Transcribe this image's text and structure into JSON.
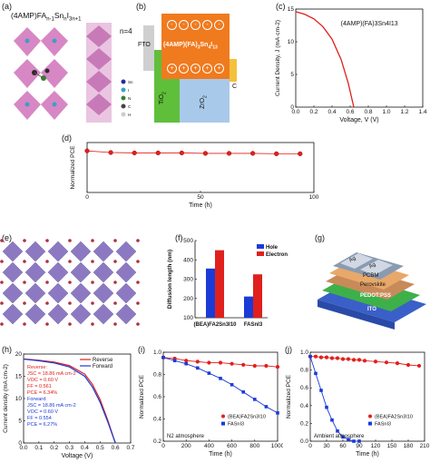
{
  "panels": {
    "a": {
      "label": "(a)",
      "formula": "(4AMP)FAn-1SnnI3n+1",
      "n_label": "n=4",
      "legend": [
        "Sn",
        "I",
        "N",
        "C",
        "H"
      ]
    },
    "b": {
      "label": "(b)",
      "fto": "FTO",
      "compound": "(4AMP)(FA)3Sn4I13",
      "tio2": "TiO2",
      "zro2": "ZrO2",
      "c": "C",
      "minus": [
        "-",
        "-",
        "-",
        "-",
        "-"
      ],
      "plus": [
        "+",
        "+",
        "+",
        "+",
        "+"
      ]
    },
    "c": {
      "label": "(c)",
      "series_label": "(4AMP)(FA)3Sn4I13",
      "xlabel": "Voltage, V (V)",
      "ylabel": "Current Density, J (mA·cm-2)"
    },
    "d": {
      "label": "(d)",
      "xlabel": "Time (h)",
      "ylabel": "Normalized PCE"
    },
    "e": {
      "label": "(e)"
    },
    "f": {
      "label": "(f)",
      "ylabel": "Diffusion length (nm)"
    },
    "g": {
      "label": "(g)",
      "layers": [
        "Ag",
        "Ag",
        "PCBM",
        "Perovskite",
        "PEDOT:PSS",
        "ITO"
      ]
    },
    "h": {
      "label": "(h)",
      "reverse_title": "Reverse:",
      "reverse_jsc": "JSC = 18.86 mA cm-2",
      "reverse_voc": "VOC = 0.60 V",
      "reverse_ff": "FF = 0.561",
      "reverse_pce": "PCE = 6.34%",
      "forward_title": "Forward:",
      "forward_jsc": "JSC = 18.86 mA cm-2",
      "forward_voc": "VOC = 0.60 V",
      "forward_ff": "FF = 0.554",
      "forward_pce": "PCE = 6.27%",
      "xlabel": "Voltage (V)",
      "ylabel": "Current density (mA cm-2)"
    },
    "i": {
      "label": "(i)",
      "atmosphere": "N2 atmosphere",
      "xlabel": "Time (h)",
      "ylabel": "Normalized PCE"
    },
    "j": {
      "label": "(j)",
      "atmosphere": "Ambient atmosphere",
      "xlabel": "Time (h)",
      "ylabel": "Normalized PCE"
    }
  },
  "colors": {
    "red": "#e0201c",
    "blue": "#1a3bd6",
    "orange": "#f07a1e",
    "green": "#5fbf3a",
    "lightblue": "#a9c9ea"
  },
  "chart_data": [
    {
      "id": "c",
      "type": "line",
      "x": [
        0,
        0.1,
        0.2,
        0.3,
        0.4,
        0.5,
        0.58,
        0.64
      ],
      "y": [
        14.6,
        14.2,
        13.5,
        12.3,
        10.4,
        7.3,
        3.6,
        0
      ],
      "series": [
        {
          "name": "(4AMP)(FA)3Sn4I13"
        }
      ],
      "xticks": [
        "0.0",
        "0.2",
        "0.4",
        "0.6",
        "0.8",
        "1.0",
        "1.2",
        "1.4"
      ],
      "yticks": [
        "0",
        "5",
        "10",
        "15"
      ],
      "xlim": [
        0,
        1.4
      ],
      "ylim": [
        0,
        15
      ]
    },
    {
      "id": "d",
      "type": "line",
      "x": [
        0,
        12,
        24,
        36,
        48,
        60,
        72,
        84,
        96,
        108
      ],
      "y": [
        1.0,
        0.96,
        0.95,
        0.95,
        0.95,
        0.94,
        0.94,
        0.94,
        0.93,
        0.93
      ],
      "xticks": [
        "0",
        "50",
        "100"
      ],
      "xlim": [
        0,
        115
      ],
      "ylim": [
        0,
        1.2
      ]
    },
    {
      "id": "f",
      "type": "bar",
      "categories": [
        "(BEA)FA2Sn3I10",
        "FASnI3"
      ],
      "series": [
        {
          "name": "Hole",
          "values": [
            355,
            210
          ]
        },
        {
          "name": "Electron",
          "values": [
            450,
            325
          ]
        }
      ],
      "yticks": [
        "100",
        "200",
        "300",
        "400",
        "500"
      ],
      "ylim": [
        100,
        500
      ]
    },
    {
      "id": "h",
      "type": "line",
      "x": [
        0,
        0.1,
        0.2,
        0.3,
        0.4,
        0.45,
        0.5,
        0.55,
        0.6
      ],
      "series": [
        {
          "name": "Reverse",
          "values": [
            18.9,
            18.6,
            18.2,
            17.4,
            15.5,
            13.2,
            9.8,
            5.2,
            0
          ]
        },
        {
          "name": "Forward",
          "values": [
            18.86,
            18.5,
            18.0,
            17.1,
            15.0,
            12.6,
            9.2,
            4.8,
            0
          ]
        }
      ],
      "xticks": [
        "0.0",
        "0.1",
        "0.2",
        "0.3",
        "0.4",
        "0.5",
        "0.6",
        "0.7"
      ],
      "yticks": [
        "0",
        "5",
        "10",
        "15",
        "20"
      ],
      "xlim": [
        0,
        0.7
      ],
      "ylim": [
        0,
        20
      ]
    },
    {
      "id": "i",
      "type": "line",
      "series": [
        {
          "name": "(BEA)FA2Sn3I10",
          "x": [
            0,
            100,
            200,
            300,
            400,
            500,
            600,
            700,
            800,
            900,
            1000
          ],
          "values": [
            1.0,
            0.99,
            0.97,
            0.96,
            0.95,
            0.95,
            0.94,
            0.93,
            0.92,
            0.92,
            0.91
          ]
        },
        {
          "name": "FASnI3",
          "x": [
            0,
            100,
            200,
            300,
            400,
            500,
            600,
            700,
            800,
            900,
            1000
          ],
          "values": [
            1.0,
            0.97,
            0.94,
            0.9,
            0.85,
            0.8,
            0.74,
            0.67,
            0.6,
            0.53,
            0.47
          ]
        }
      ],
      "xticks": [
        "0",
        "200",
        "400",
        "600",
        "800",
        "1000"
      ],
      "yticks": [
        "0.2",
        "0.4",
        "0.6",
        "0.8",
        "1.0"
      ],
      "xlim": [
        0,
        1000
      ],
      "ylim": [
        0.2,
        1.05
      ]
    },
    {
      "id": "j",
      "type": "line",
      "series": [
        {
          "name": "(BEA)FA2Sn3I10",
          "x": [
            0,
            10,
            20,
            30,
            40,
            50,
            60,
            70,
            80,
            90,
            100,
            120,
            140,
            160,
            180,
            200
          ],
          "values": [
            1.0,
            1.0,
            0.99,
            0.99,
            0.98,
            0.98,
            0.97,
            0.97,
            0.96,
            0.96,
            0.95,
            0.94,
            0.93,
            0.92,
            0.9,
            0.89
          ]
        },
        {
          "name": "FASnI3",
          "x": [
            0,
            10,
            20,
            30,
            40,
            50,
            60,
            70,
            80,
            90
          ],
          "values": [
            1.0,
            0.8,
            0.6,
            0.4,
            0.25,
            0.12,
            0.05,
            0.02,
            0.0,
            0.0
          ]
        }
      ],
      "xticks": [
        "0",
        "30",
        "60",
        "90",
        "120",
        "150",
        "180",
        "210"
      ],
      "yticks": [
        "0.0",
        "0.2",
        "0.4",
        "0.6",
        "0.8",
        "1.0"
      ],
      "xlim": [
        0,
        210
      ],
      "ylim": [
        0,
        1.05
      ]
    }
  ]
}
